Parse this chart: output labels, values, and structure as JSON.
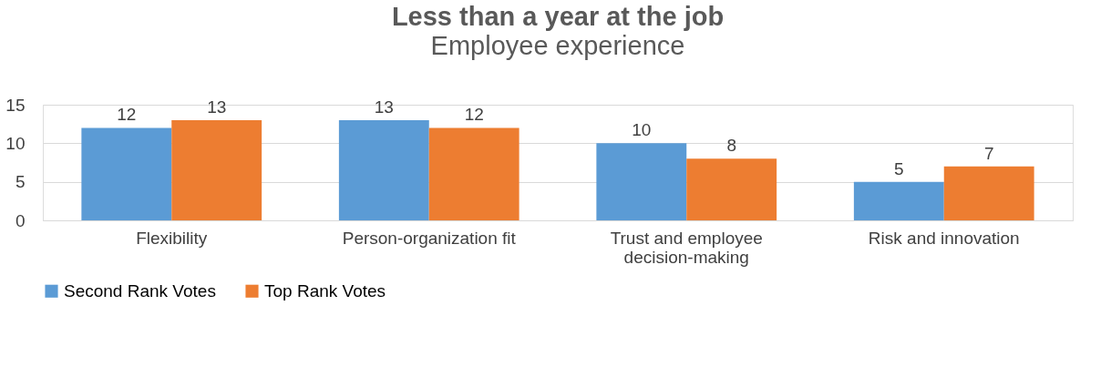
{
  "chart_data": {
    "type": "bar",
    "title": "Less than a year at the job",
    "subtitle": "Employee experience",
    "categories": [
      "Flexibility",
      "Person-organization fit",
      "Trust and employee decision-making",
      "Risk and innovation"
    ],
    "series": [
      {
        "name": "Second Rank Votes",
        "color": "#5b9bd5",
        "values": [
          12,
          13,
          10,
          5
        ]
      },
      {
        "name": "Top Rank Votes",
        "color": "#ed7d31",
        "values": [
          13,
          12,
          8,
          7
        ]
      }
    ],
    "ylim": [
      0,
      15
    ],
    "yticks": [
      0,
      5,
      10,
      15
    ],
    "grid": "y",
    "legend": "bottom",
    "data_labels": true
  }
}
